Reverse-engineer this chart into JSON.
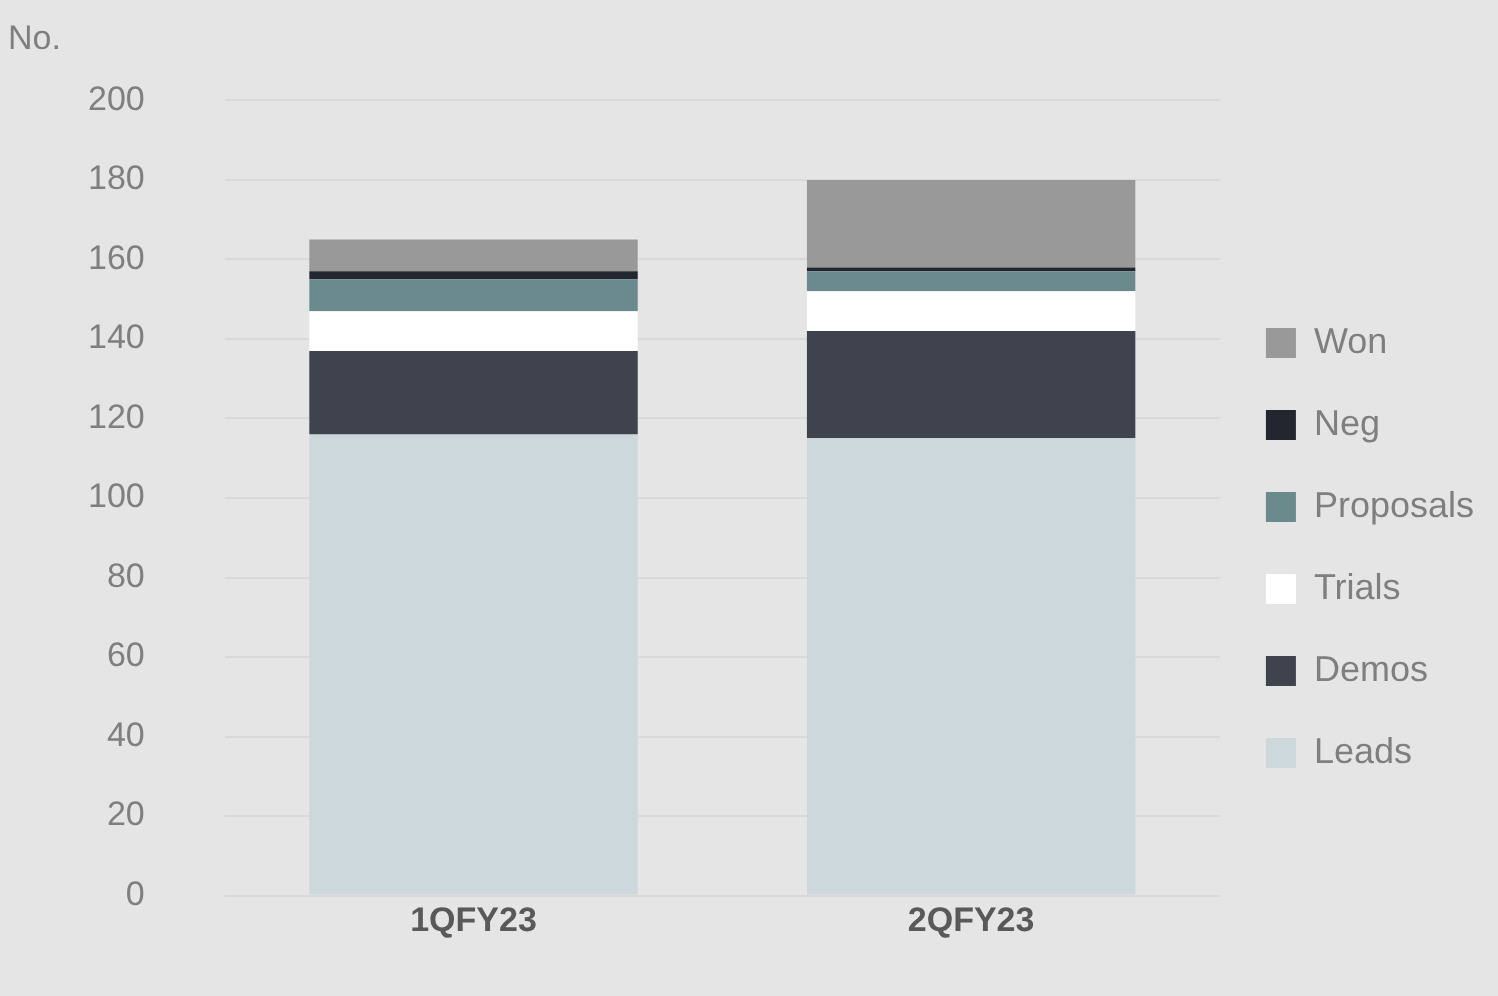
{
  "chart_data": {
    "type": "bar",
    "stacked": true,
    "ylabel": "No.",
    "categories": [
      "1QFY23",
      "2QFY23"
    ],
    "series": [
      {
        "name": "Leads",
        "color": "#ccd8db",
        "values": [
          116,
          115
        ]
      },
      {
        "name": "Demos",
        "color": "#3e434e",
        "values": [
          21,
          27
        ]
      },
      {
        "name": "Trials",
        "color": "#ffffff",
        "values": [
          10,
          10
        ]
      },
      {
        "name": "Proposals",
        "color": "#6b8a8e",
        "values": [
          8,
          5
        ]
      },
      {
        "name": "Neg",
        "color": "#22262e",
        "values": [
          2,
          1
        ]
      },
      {
        "name": "Won",
        "color": "#999999",
        "values": [
          8,
          22
        ]
      }
    ],
    "ylim": [
      0,
      200
    ],
    "yticks": [
      0,
      20,
      40,
      60,
      80,
      100,
      120,
      140,
      160,
      180,
      200
    ],
    "grid": "y",
    "legend": "right"
  }
}
